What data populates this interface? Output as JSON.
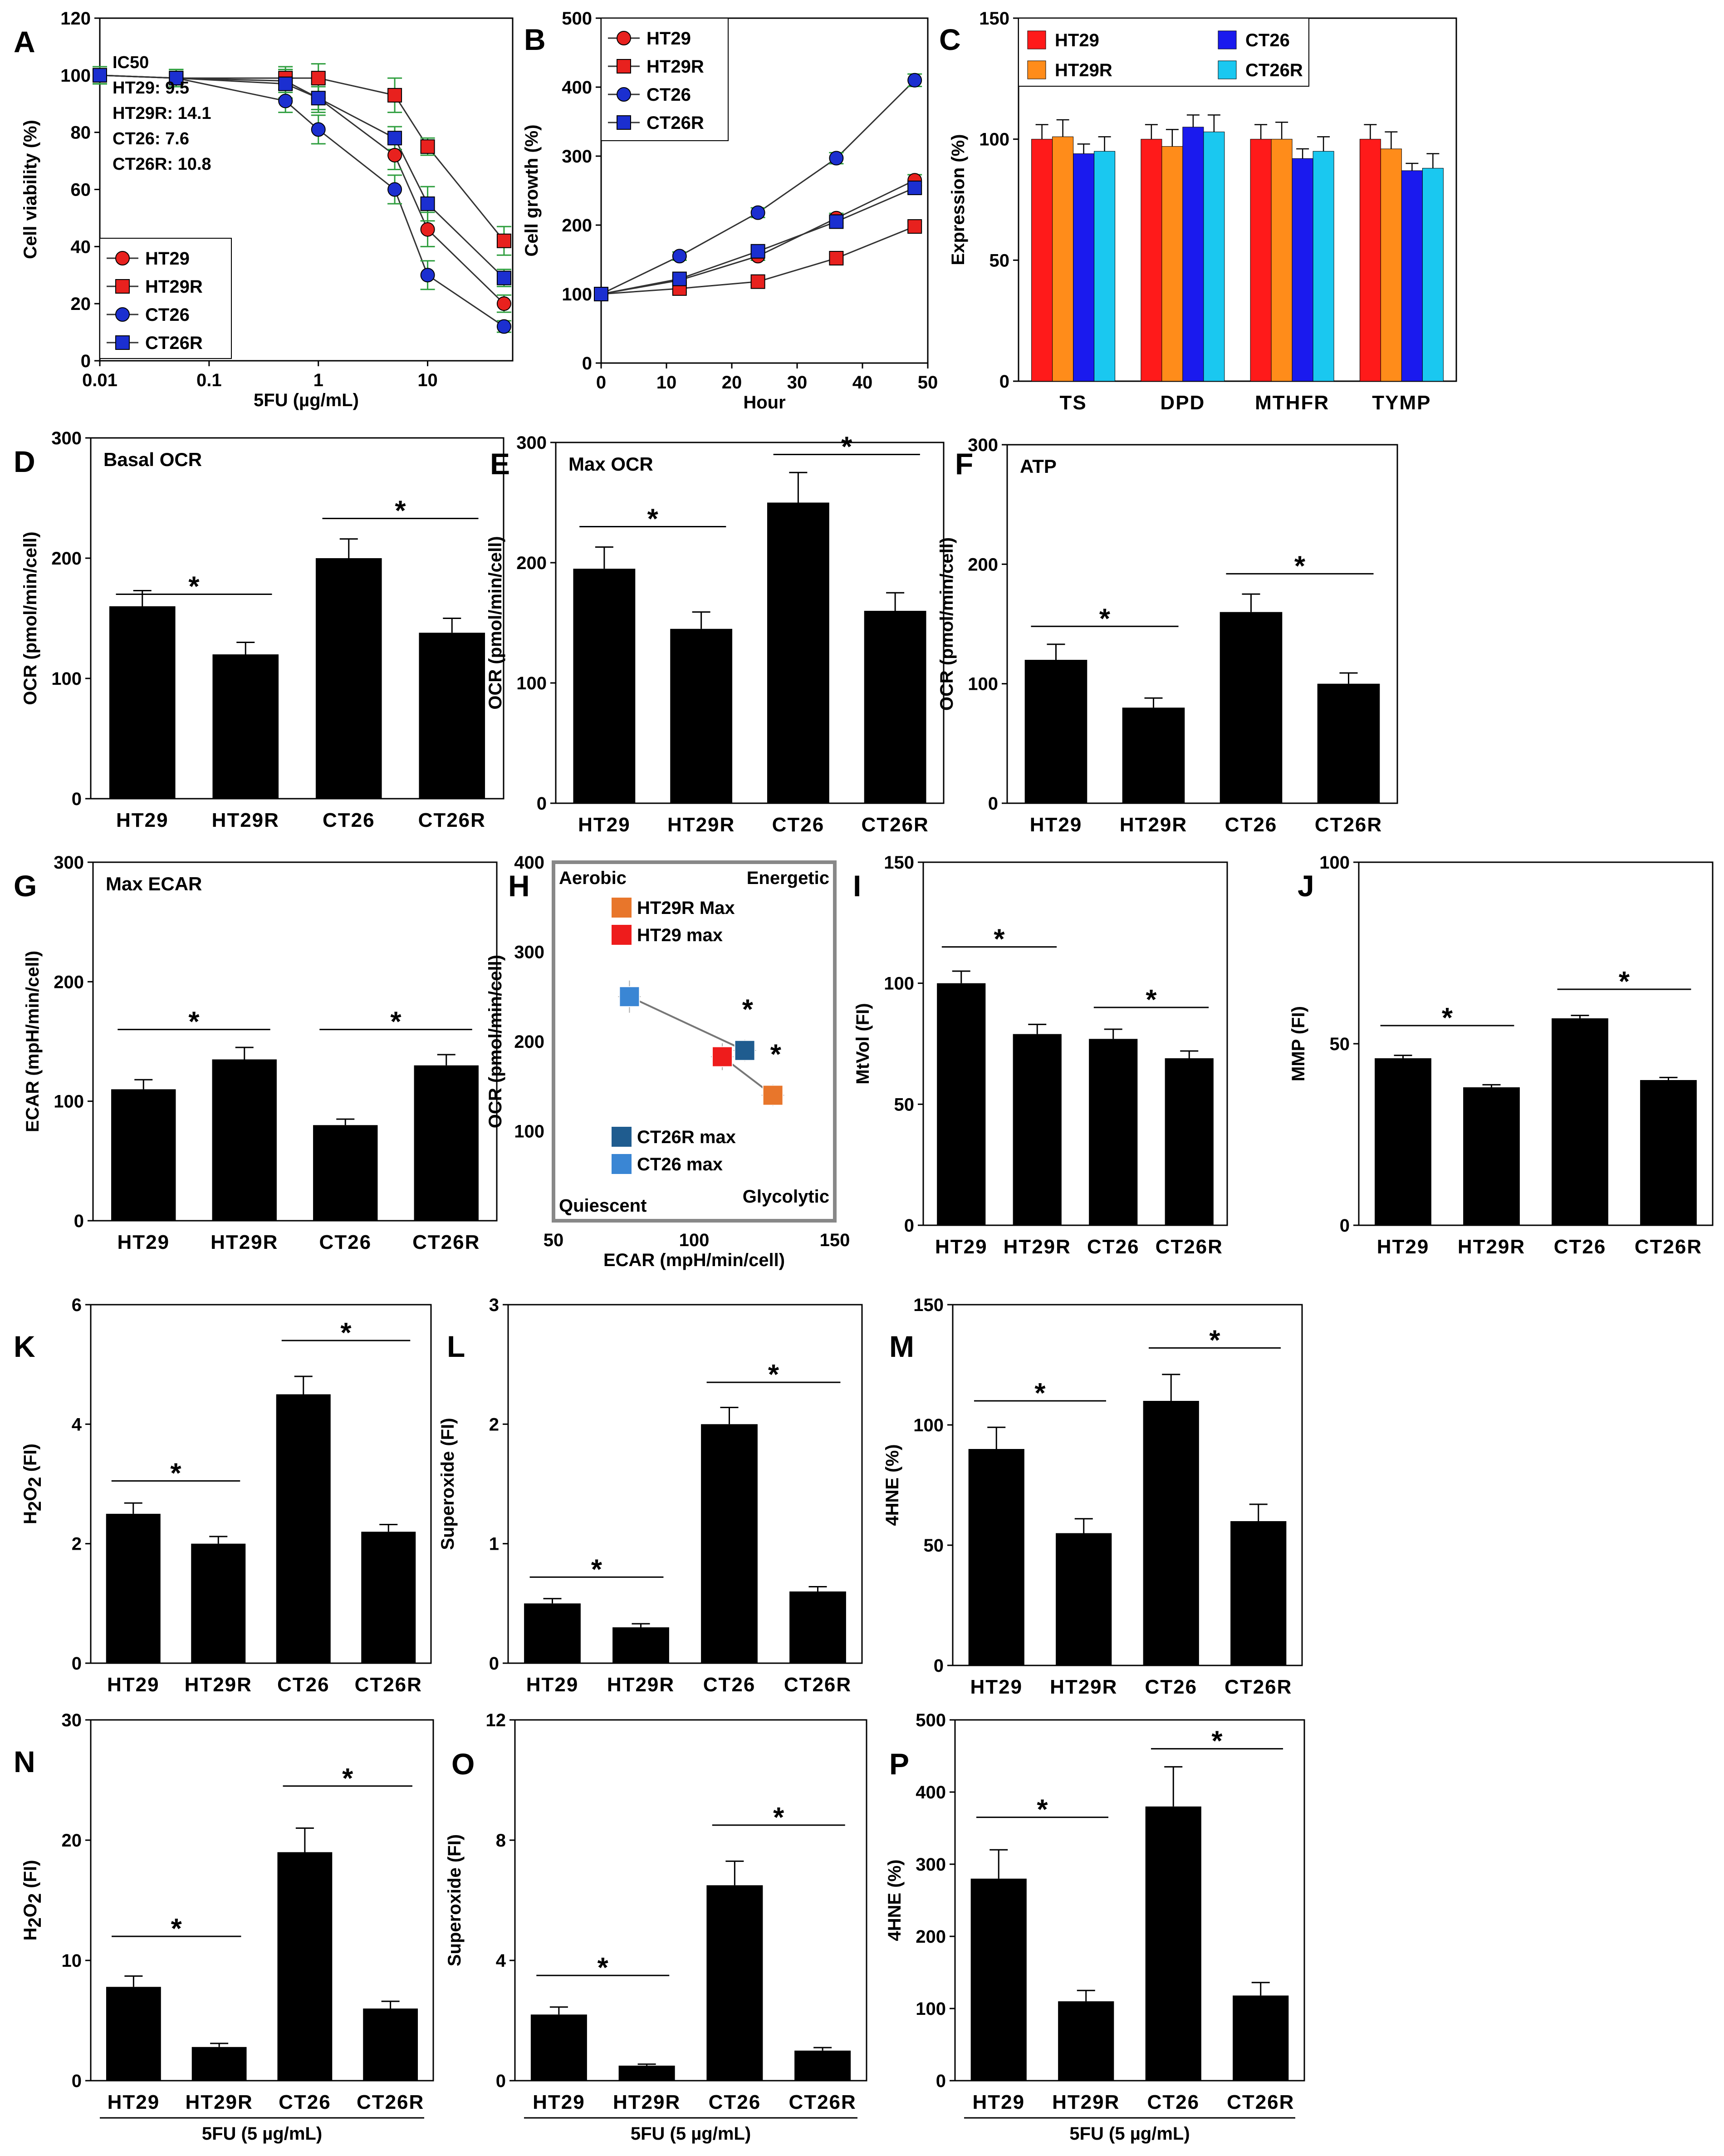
{
  "chart_data": [
    {
      "id": "A",
      "panel_label": "A",
      "type": "line",
      "xlabel": "5FU (µg/mL)",
      "ylabel": "Cell viability (%)",
      "xscale": "log",
      "xlim": [
        0.01,
        60
      ],
      "ylim": [
        0,
        120
      ],
      "xticks": [
        0.01,
        0.1,
        1,
        10
      ],
      "xtick_labels": [
        "0.01",
        "0.1",
        "1",
        "10"
      ],
      "yticks": [
        0,
        20,
        40,
        60,
        80,
        100,
        120
      ],
      "ytick_labels": [
        "0",
        "20",
        "40",
        "60",
        "80",
        "100",
        "120"
      ],
      "x": [
        0.01,
        0.05,
        0.5,
        1,
        5,
        10,
        50
      ],
      "series": [
        {
          "name": "HT29",
          "marker": "circle",
          "color": "#e8211e",
          "values": [
            100,
            99,
            98,
            92,
            72,
            46,
            20
          ],
          "errors": [
            3,
            3,
            4,
            4,
            5,
            6,
            3
          ]
        },
        {
          "name": "HT29R",
          "marker": "square",
          "color": "#e8211e",
          "values": [
            100,
            99,
            99,
            99,
            93,
            75,
            42
          ],
          "errors": [
            3,
            3,
            4,
            5,
            6,
            3,
            5
          ]
        },
        {
          "name": "CT26",
          "marker": "circle",
          "color": "#1b2fd0",
          "values": [
            100,
            99,
            91,
            81,
            60,
            30,
            12
          ],
          "errors": [
            3,
            3,
            4,
            5,
            5,
            5,
            2
          ]
        },
        {
          "name": "CT26R",
          "marker": "square",
          "color": "#1b2fd0",
          "values": [
            100,
            99,
            97,
            92,
            78,
            55,
            29
          ],
          "errors": [
            3,
            3,
            5,
            5,
            4,
            6,
            3
          ]
        }
      ],
      "annotation": [
        "IC50",
        "HT29: 9.5",
        "HT29R: 14.1",
        "CT26: 7.6",
        "CT26R: 10.8"
      ],
      "legend": "bottom-left"
    },
    {
      "id": "B",
      "panel_label": "B",
      "type": "line",
      "xlabel": "Hour",
      "ylabel": "Cell growth (%)",
      "xlim": [
        0,
        50
      ],
      "ylim": [
        0,
        500
      ],
      "xticks": [
        0,
        10,
        20,
        30,
        40,
        50
      ],
      "xtick_labels": [
        "0",
        "10",
        "20",
        "30",
        "40",
        "50"
      ],
      "yticks": [
        0,
        100,
        200,
        300,
        400,
        500
      ],
      "ytick_labels": [
        "0",
        "100",
        "200",
        "300",
        "400",
        "500"
      ],
      "x": [
        0,
        12,
        24,
        36,
        48
      ],
      "series": [
        {
          "name": "HT29",
          "marker": "circle",
          "color": "#e8211e",
          "values": [
            100,
            120,
            155,
            210,
            265
          ],
          "errors": [
            4,
            5,
            6,
            7,
            8
          ]
        },
        {
          "name": "HT29R",
          "marker": "square",
          "color": "#e8211e",
          "values": [
            100,
            108,
            118,
            152,
            198
          ],
          "errors": [
            4,
            5,
            5,
            6,
            7
          ]
        },
        {
          "name": "CT26",
          "marker": "circle",
          "color": "#1b2fd0",
          "values": [
            100,
            155,
            218,
            297,
            410
          ],
          "errors": [
            4,
            6,
            7,
            8,
            9
          ]
        },
        {
          "name": "CT26R",
          "marker": "square",
          "color": "#1b2fd0",
          "values": [
            100,
            122,
            162,
            205,
            254
          ],
          "errors": [
            4,
            5,
            6,
            7,
            8
          ]
        }
      ],
      "legend": "top-left"
    },
    {
      "id": "C",
      "panel_label": "C",
      "type": "bar",
      "xlabel": "",
      "ylabel": "Expression (%)",
      "ylim": [
        0,
        150
      ],
      "yticks": [
        0,
        50,
        100,
        150
      ],
      "ytick_labels": [
        "0",
        "50",
        "100",
        "150"
      ],
      "categories": [
        "TS",
        "DPD",
        "MTHFR",
        "TYMP"
      ],
      "series": [
        {
          "name": "HT29",
          "color": "#ff1a1a",
          "values": [
            100,
            100,
            100,
            100
          ],
          "errors": [
            6,
            6,
            6,
            6
          ]
        },
        {
          "name": "HT29R",
          "color": "#ff8c1a",
          "values": [
            101,
            97,
            100,
            96
          ],
          "errors": [
            7,
            7,
            7,
            7
          ]
        },
        {
          "name": "CT26",
          "color": "#1a1aee",
          "values": [
            94,
            105,
            92,
            87
          ],
          "errors": [
            4,
            5,
            4,
            3
          ]
        },
        {
          "name": "CT26R",
          "color": "#1ac8f0",
          "values": [
            95,
            103,
            95,
            88
          ],
          "errors": [
            6,
            7,
            6,
            6
          ]
        }
      ],
      "legend": "top"
    },
    {
      "id": "D",
      "panel_label": "D",
      "type": "bar",
      "title": "Basal OCR",
      "ylabel": "OCR (pmol/min/cell)",
      "ylim": [
        0,
        300
      ],
      "yticks": [
        0,
        100,
        200,
        300
      ],
      "ytick_labels": [
        "0",
        "100",
        "200",
        "300"
      ],
      "categories": [
        "HT29",
        "HT29R",
        "CT26",
        "CT26R"
      ],
      "values": [
        160,
        120,
        200,
        138
      ],
      "errors": [
        13,
        10,
        16,
        12
      ],
      "significance": [
        {
          "from": 0,
          "to": 1,
          "level": 170,
          "label": "*"
        },
        {
          "from": 2,
          "to": 3,
          "level": 233,
          "label": "*"
        }
      ]
    },
    {
      "id": "E",
      "panel_label": "E",
      "type": "bar",
      "title": "Max OCR",
      "ylabel": "OCR (pmol/min/cell)",
      "ylim": [
        0,
        300
      ],
      "yticks": [
        0,
        100,
        200,
        300
      ],
      "ytick_labels": [
        "0",
        "100",
        "200",
        "300"
      ],
      "categories": [
        "HT29",
        "HT29R",
        "CT26",
        "CT26R"
      ],
      "values": [
        195,
        145,
        250,
        160
      ],
      "errors": [
        18,
        14,
        25,
        15
      ],
      "significance": [
        {
          "from": 0,
          "to": 1,
          "level": 230,
          "label": "*"
        },
        {
          "from": 2,
          "to": 3,
          "level": 290,
          "label": "*"
        }
      ]
    },
    {
      "id": "F",
      "panel_label": "F",
      "type": "bar",
      "title": "ATP",
      "ylabel": "OCR (pmol/min/cell)",
      "ylim": [
        0,
        300
      ],
      "yticks": [
        0,
        100,
        200,
        300
      ],
      "ytick_labels": [
        "0",
        "100",
        "200",
        "300"
      ],
      "categories": [
        "HT29",
        "HT29R",
        "CT26",
        "CT26R"
      ],
      "values": [
        120,
        80,
        160,
        100
      ],
      "errors": [
        13,
        8,
        15,
        9
      ],
      "significance": [
        {
          "from": 0,
          "to": 1,
          "level": 148,
          "label": "*"
        },
        {
          "from": 2,
          "to": 3,
          "level": 192,
          "label": "*"
        }
      ]
    },
    {
      "id": "G",
      "panel_label": "G",
      "type": "bar",
      "title": "Max ECAR",
      "ylabel": "ECAR (mpH/min/cell)",
      "ylim": [
        0,
        300
      ],
      "yticks": [
        0,
        100,
        200,
        300
      ],
      "ytick_labels": [
        "0",
        "100",
        "200",
        "300"
      ],
      "categories": [
        "HT29",
        "HT29R",
        "CT26",
        "CT26R"
      ],
      "values": [
        110,
        135,
        80,
        130
      ],
      "errors": [
        8,
        10,
        5,
        9
      ],
      "significance": [
        {
          "from": 0,
          "to": 1,
          "level": 160,
          "label": "*"
        },
        {
          "from": 2,
          "to": 3,
          "level": 160,
          "label": "*"
        }
      ]
    },
    {
      "id": "H",
      "panel_label": "H",
      "type": "scatter",
      "xlabel": "ECAR (mpH/min/cell)",
      "ylabel": "OCR (pmol/min/cell)",
      "xlim": [
        50,
        150
      ],
      "ylim": [
        0,
        400
      ],
      "xticks": [
        50,
        100,
        150
      ],
      "xtick_labels": [
        "50",
        "100",
        "150"
      ],
      "yticks": [
        100,
        200,
        300,
        400
      ],
      "ytick_labels": [
        "100",
        "200",
        "300",
        "400"
      ],
      "points": [
        {
          "name": "HT29R Max",
          "color": "#e8762b",
          "x": 128,
          "y": 140,
          "xerr": 4,
          "yerr": 12
        },
        {
          "name": "HT29 max",
          "color": "#ee1c1c",
          "x": 110,
          "y": 183,
          "xerr": 4,
          "yerr": 15
        },
        {
          "name": "CT26R max",
          "color": "#1f5c8f",
          "x": 118,
          "y": 190,
          "xerr": 4,
          "yerr": 12
        },
        {
          "name": "CT26 max",
          "color": "#3a86d4",
          "x": 77,
          "y": 250,
          "xerr": 4,
          "yerr": 18
        }
      ],
      "connections": [
        [
          3,
          2
        ],
        [
          1,
          0
        ]
      ],
      "significance_marks": [
        {
          "x": 119,
          "y": 225,
          "label": "*"
        },
        {
          "x": 129,
          "y": 175,
          "label": "*"
        }
      ],
      "quadrant_labels": [
        "Aerobic",
        "Energetic",
        "Quiescent",
        "Glycolytic"
      ]
    },
    {
      "id": "I",
      "panel_label": "I",
      "type": "bar",
      "ylabel": "MtVol (FI)",
      "ylim": [
        0,
        150
      ],
      "yticks": [
        0,
        50,
        100,
        150
      ],
      "ytick_labels": [
        "0",
        "50",
        "100",
        "150"
      ],
      "categories": [
        "HT29",
        "HT29R",
        "CT26",
        "CT26R"
      ],
      "values": [
        100,
        79,
        77,
        69
      ],
      "errors": [
        5,
        4,
        4,
        3
      ],
      "significance": [
        {
          "from": 0,
          "to": 1,
          "level": 115,
          "label": "*"
        },
        {
          "from": 2,
          "to": 3,
          "level": 90,
          "label": "*"
        }
      ]
    },
    {
      "id": "J",
      "panel_label": "J",
      "type": "bar",
      "ylabel": "MMP (FI)",
      "ylim": [
        0,
        100
      ],
      "yticks": [
        0,
        50,
        100
      ],
      "ytick_labels": [
        "0",
        "50",
        "100"
      ],
      "categories": [
        "HT29",
        "HT29R",
        "CT26",
        "CT26R"
      ],
      "values": [
        46,
        38,
        57,
        40
      ],
      "errors": [
        0.8,
        0.7,
        0.8,
        0.7
      ],
      "significance": [
        {
          "from": 0,
          "to": 1,
          "level": 55,
          "label": "*"
        },
        {
          "from": 2,
          "to": 3,
          "level": 65,
          "label": "*"
        }
      ]
    },
    {
      "id": "K",
      "panel_label": "K",
      "type": "bar",
      "ylabel": "H2O2 (FI)",
      "ylim": [
        0,
        6
      ],
      "yticks": [
        0,
        2,
        4,
        6
      ],
      "ytick_labels": [
        "0",
        "2",
        "4",
        "6"
      ],
      "categories": [
        "HT29",
        "HT29R",
        "CT26",
        "CT26R"
      ],
      "values": [
        2.5,
        2.0,
        4.5,
        2.2
      ],
      "errors": [
        0.18,
        0.12,
        0.3,
        0.12
      ],
      "significance": [
        {
          "from": 0,
          "to": 1,
          "level": 3.05,
          "label": "*"
        },
        {
          "from": 2,
          "to": 3,
          "level": 5.4,
          "label": "*"
        }
      ]
    },
    {
      "id": "L",
      "panel_label": "L",
      "type": "bar",
      "ylabel": "Superoxide (FI)",
      "ylim": [
        0,
        3
      ],
      "yticks": [
        0,
        1,
        2,
        3
      ],
      "ytick_labels": [
        "0",
        "1",
        "2",
        "3"
      ],
      "categories": [
        "HT29",
        "HT29R",
        "CT26",
        "CT26R"
      ],
      "values": [
        0.5,
        0.3,
        2.0,
        0.6
      ],
      "errors": [
        0.04,
        0.03,
        0.14,
        0.04
      ],
      "significance": [
        {
          "from": 0,
          "to": 1,
          "level": 0.72,
          "label": "*"
        },
        {
          "from": 2,
          "to": 3,
          "level": 2.35,
          "label": "*"
        }
      ]
    },
    {
      "id": "M",
      "panel_label": "M",
      "type": "bar",
      "ylabel": "4HNE (%)",
      "ylim": [
        0,
        150
      ],
      "yticks": [
        0,
        50,
        100,
        150
      ],
      "ytick_labels": [
        "0",
        "50",
        "100",
        "150"
      ],
      "categories": [
        "HT29",
        "HT29R",
        "CT26",
        "CT26R"
      ],
      "values": [
        90,
        55,
        110,
        60
      ],
      "errors": [
        9,
        6,
        11,
        7
      ],
      "significance": [
        {
          "from": 0,
          "to": 1,
          "level": 110,
          "label": "*"
        },
        {
          "from": 2,
          "to": 3,
          "level": 132,
          "label": "*"
        }
      ]
    },
    {
      "id": "N",
      "panel_label": "N",
      "type": "bar",
      "ylabel": "H2O2 (FI)",
      "xlabel": "5FU (5 µg/mL)",
      "ylim": [
        0,
        30
      ],
      "yticks": [
        0,
        10,
        20,
        30
      ],
      "ytick_labels": [
        "0",
        "10",
        "20",
        "30"
      ],
      "categories": [
        "HT29",
        "HT29R",
        "CT26",
        "CT26R"
      ],
      "values": [
        7.8,
        2.8,
        19,
        6
      ],
      "errors": [
        0.9,
        0.3,
        2,
        0.6
      ],
      "significance": [
        {
          "from": 0,
          "to": 1,
          "level": 12,
          "label": "*"
        },
        {
          "from": 2,
          "to": 3,
          "level": 24.5,
          "label": "*"
        }
      ]
    },
    {
      "id": "O",
      "panel_label": "O",
      "type": "bar",
      "ylabel": "Superoxide (FI)",
      "xlabel": "5FU (5 µg/mL)",
      "ylim": [
        0,
        12
      ],
      "yticks": [
        0,
        4,
        8,
        12
      ],
      "ytick_labels": [
        "0",
        "4",
        "8",
        "12"
      ],
      "categories": [
        "HT29",
        "HT29R",
        "CT26",
        "CT26R"
      ],
      "values": [
        2.2,
        0.5,
        6.5,
        1.0
      ],
      "errors": [
        0.25,
        0.05,
        0.8,
        0.1
      ],
      "significance": [
        {
          "from": 0,
          "to": 1,
          "level": 3.5,
          "label": "*"
        },
        {
          "from": 2,
          "to": 3,
          "level": 8.5,
          "label": "*"
        }
      ]
    },
    {
      "id": "P",
      "panel_label": "P",
      "type": "bar",
      "ylabel": "4HNE (%)",
      "xlabel": "5FU (5 µg/mL)",
      "ylim": [
        0,
        500
      ],
      "yticks": [
        0,
        100,
        200,
        300,
        400,
        500
      ],
      "ytick_labels": [
        "0",
        "100",
        "200",
        "300",
        "400",
        "500"
      ],
      "categories": [
        "HT29",
        "HT29R",
        "CT26",
        "CT26R"
      ],
      "values": [
        280,
        110,
        380,
        118
      ],
      "errors": [
        40,
        15,
        55,
        18
      ],
      "significance": [
        {
          "from": 0,
          "to": 1,
          "level": 365,
          "label": "*"
        },
        {
          "from": 2,
          "to": 3,
          "level": 460,
          "label": "*"
        }
      ]
    }
  ]
}
